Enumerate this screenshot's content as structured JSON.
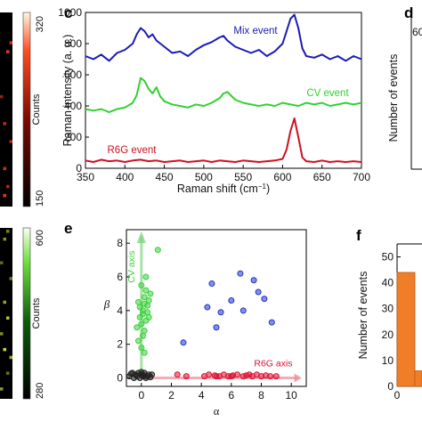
{
  "panels": {
    "c": "c",
    "d": "d",
    "e": "e",
    "f": "f"
  },
  "heatmap_top": {
    "colorbar_max": "320",
    "colorbar_min": "150",
    "colorbar_label": "Counts",
    "color_low": "#000000",
    "color_high": "#ff3b1f",
    "cells": [
      {
        "row": 3,
        "col": 3,
        "value": 260
      },
      {
        "row": 4,
        "col": 2,
        "value": 300
      },
      {
        "row": 9,
        "col": 0,
        "value": 210
      },
      {
        "row": 12,
        "col": 1,
        "value": 250
      },
      {
        "row": 14,
        "col": 3,
        "value": 230
      },
      {
        "row": 17,
        "col": 1,
        "value": 270
      },
      {
        "row": 19,
        "col": 2,
        "value": 240
      },
      {
        "row": 20,
        "col": 1,
        "value": 300
      }
    ]
  },
  "heatmap_bottom": {
    "colorbar_max": "600",
    "colorbar_min": "280",
    "colorbar_label": "Counts",
    "color_low": "#000000",
    "color_high": "#c8f040",
    "cells": [
      {
        "row": 0,
        "col": 2,
        "value": 380
      },
      {
        "row": 1,
        "col": 1,
        "value": 420
      },
      {
        "row": 4,
        "col": 0,
        "value": 330
      },
      {
        "row": 6,
        "col": 3,
        "value": 360
      },
      {
        "row": 9,
        "col": 1,
        "value": 450
      },
      {
        "row": 11,
        "col": 2,
        "value": 520
      },
      {
        "row": 13,
        "col": 0,
        "value": 400
      },
      {
        "row": 15,
        "col": 1,
        "value": 560
      },
      {
        "row": 16,
        "col": 3,
        "value": 470
      },
      {
        "row": 18,
        "col": 2,
        "value": 350
      },
      {
        "row": 20,
        "col": 0,
        "value": 430
      }
    ]
  },
  "chart_data": [
    {
      "id": "spectra",
      "type": "line",
      "xlabel": "Raman shift (cm",
      "xlabel_sup": "−1",
      "xlabel_end": ")",
      "ylabel": "Raman intensity (a. u.)",
      "xlim": [
        350,
        700
      ],
      "ylim": [
        0,
        1000
      ],
      "xticks": [
        350,
        400,
        450,
        500,
        550,
        600,
        650,
        700
      ],
      "yticks": [
        0,
        200,
        400,
        600,
        800,
        1000
      ],
      "series": [
        {
          "name": "Mix event",
          "color": "#1a1ab5",
          "x": [
            350,
            360,
            370,
            380,
            390,
            400,
            410,
            415,
            420,
            425,
            430,
            435,
            440,
            445,
            450,
            460,
            470,
            480,
            490,
            500,
            510,
            520,
            525,
            530,
            540,
            550,
            560,
            570,
            580,
            590,
            600,
            605,
            610,
            615,
            620,
            625,
            630,
            640,
            650,
            660,
            670,
            680,
            690,
            700
          ],
          "y": [
            720,
            700,
            730,
            690,
            740,
            760,
            800,
            860,
            900,
            880,
            840,
            860,
            820,
            800,
            780,
            740,
            750,
            720,
            760,
            790,
            810,
            840,
            850,
            820,
            780,
            760,
            740,
            760,
            720,
            750,
            800,
            880,
            960,
            985,
            900,
            770,
            720,
            710,
            730,
            700,
            720,
            690,
            720,
            700
          ]
        },
        {
          "name": "CV event",
          "color": "#2fd12f",
          "x": [
            350,
            360,
            370,
            380,
            390,
            400,
            410,
            415,
            420,
            425,
            430,
            435,
            440,
            445,
            450,
            460,
            470,
            480,
            490,
            500,
            510,
            520,
            525,
            530,
            540,
            550,
            560,
            570,
            580,
            590,
            600,
            610,
            620,
            630,
            640,
            650,
            660,
            670,
            680,
            690,
            700
          ],
          "y": [
            380,
            370,
            380,
            360,
            380,
            390,
            420,
            470,
            580,
            560,
            510,
            480,
            520,
            460,
            430,
            410,
            400,
            390,
            410,
            400,
            420,
            450,
            480,
            490,
            440,
            420,
            410,
            400,
            410,
            400,
            420,
            410,
            400,
            420,
            410,
            420,
            400,
            410,
            420,
            410,
            420
          ]
        },
        {
          "name": "R6G event",
          "color": "#cf1020",
          "x": [
            350,
            360,
            370,
            380,
            390,
            400,
            410,
            420,
            430,
            440,
            450,
            460,
            470,
            480,
            490,
            500,
            510,
            520,
            530,
            540,
            550,
            560,
            570,
            580,
            590,
            600,
            605,
            610,
            615,
            620,
            625,
            630,
            640,
            650,
            660,
            670,
            680,
            690,
            700
          ],
          "y": [
            50,
            40,
            55,
            45,
            50,
            40,
            50,
            55,
            45,
            50,
            40,
            45,
            50,
            40,
            45,
            50,
            40,
            50,
            45,
            40,
            50,
            45,
            40,
            45,
            50,
            60,
            120,
            240,
            320,
            200,
            70,
            45,
            40,
            50,
            40,
            45,
            40,
            45,
            40
          ]
        }
      ]
    },
    {
      "id": "scatter",
      "type": "scatter",
      "xlabel": "α",
      "ylabel": "β",
      "xlim": [
        -1,
        11
      ],
      "ylim": [
        -0.5,
        8.8
      ],
      "xticks": [
        0,
        2,
        4,
        6,
        8,
        10
      ],
      "yticks": [
        0,
        2,
        4,
        6,
        8
      ],
      "annotations": [
        "CV axis",
        "R6G axis"
      ],
      "series": [
        {
          "name": "green",
          "color": "#3ccf3c",
          "points": [
            [
              -0.1,
              3.6
            ],
            [
              0.0,
              3.2
            ],
            [
              0.1,
              4.0
            ],
            [
              -0.2,
              4.5
            ],
            [
              0.2,
              4.8
            ],
            [
              0.3,
              5.2
            ],
            [
              0.0,
              5.5
            ],
            [
              0.4,
              4.3
            ],
            [
              0.1,
              3.8
            ],
            [
              -0.3,
              3.0
            ],
            [
              0.2,
              2.8
            ],
            [
              0.5,
              4.6
            ],
            [
              -0.1,
              4.2
            ],
            [
              0.3,
              3.4
            ],
            [
              0.1,
              2.5
            ],
            [
              0.6,
              5.0
            ],
            [
              0.0,
              1.8
            ],
            [
              0.2,
              1.5
            ],
            [
              0.4,
              3.9
            ],
            [
              1.1,
              7.6
            ],
            [
              -0.2,
              2.2
            ],
            [
              0.3,
              6.0
            ],
            [
              0.5,
              3.6
            ],
            [
              0.2,
              4.4
            ]
          ]
        },
        {
          "name": "blue",
          "color": "#2233cc",
          "points": [
            [
              2.8,
              2.1
            ],
            [
              4.4,
              4.2
            ],
            [
              5.0,
              3.0
            ],
            [
              5.3,
              3.9
            ],
            [
              6.0,
              4.6
            ],
            [
              6.6,
              6.2
            ],
            [
              6.8,
              4.0
            ],
            [
              7.5,
              5.8
            ],
            [
              7.8,
              5.1
            ],
            [
              8.2,
              4.7
            ],
            [
              8.7,
              3.3
            ],
            [
              4.7,
              5.6
            ]
          ]
        },
        {
          "name": "red",
          "color": "#dd1133",
          "points": [
            [
              2.4,
              0.2
            ],
            [
              3.0,
              0.1
            ],
            [
              4.2,
              0.1
            ],
            [
              4.5,
              0.2
            ],
            [
              4.9,
              0.15
            ],
            [
              5.2,
              0.1
            ],
            [
              5.5,
              0.2
            ],
            [
              5.8,
              0.1
            ],
            [
              6.1,
              0.15
            ],
            [
              6.4,
              0.2
            ],
            [
              6.8,
              0.1
            ],
            [
              7.0,
              0.15
            ],
            [
              7.4,
              0.1
            ],
            [
              7.7,
              0.2
            ],
            [
              8.0,
              0.1
            ],
            [
              8.3,
              0.15
            ],
            [
              8.6,
              0.1
            ],
            [
              9.0,
              0.1
            ],
            [
              5.0,
              0.1
            ],
            [
              6.0,
              0.1
            ],
            [
              7.2,
              0.2
            ]
          ]
        },
        {
          "name": "black",
          "color": "#222222",
          "points": [
            [
              -0.8,
              0.1
            ],
            [
              -0.6,
              0.3
            ],
            [
              -0.5,
              0.0
            ],
            [
              -0.4,
              0.2
            ],
            [
              -0.3,
              0.1
            ],
            [
              -0.2,
              0.3
            ],
            [
              -0.1,
              0.0
            ],
            [
              0.0,
              0.2
            ],
            [
              0.1,
              0.1
            ],
            [
              0.2,
              0.3
            ],
            [
              0.3,
              0.0
            ],
            [
              0.4,
              0.1
            ],
            [
              0.5,
              0.2
            ],
            [
              0.6,
              0.05
            ],
            [
              0.7,
              0.2
            ],
            [
              -0.7,
              0.25
            ],
            [
              0.0,
              0.35
            ],
            [
              0.2,
              0.15
            ]
          ]
        }
      ]
    },
    {
      "id": "hist",
      "type": "bar",
      "ylabel": "Number of events",
      "ylim": [
        0,
        55
      ],
      "yticks": [
        0,
        10,
        20,
        30,
        40,
        50
      ],
      "xticks": [
        "0"
      ],
      "color": "#f07d28",
      "values": [
        44,
        6
      ]
    },
    {
      "id": "hist_top",
      "type": "bar",
      "ylabel": "Number of events",
      "yticks": [
        "60"
      ]
    }
  ]
}
